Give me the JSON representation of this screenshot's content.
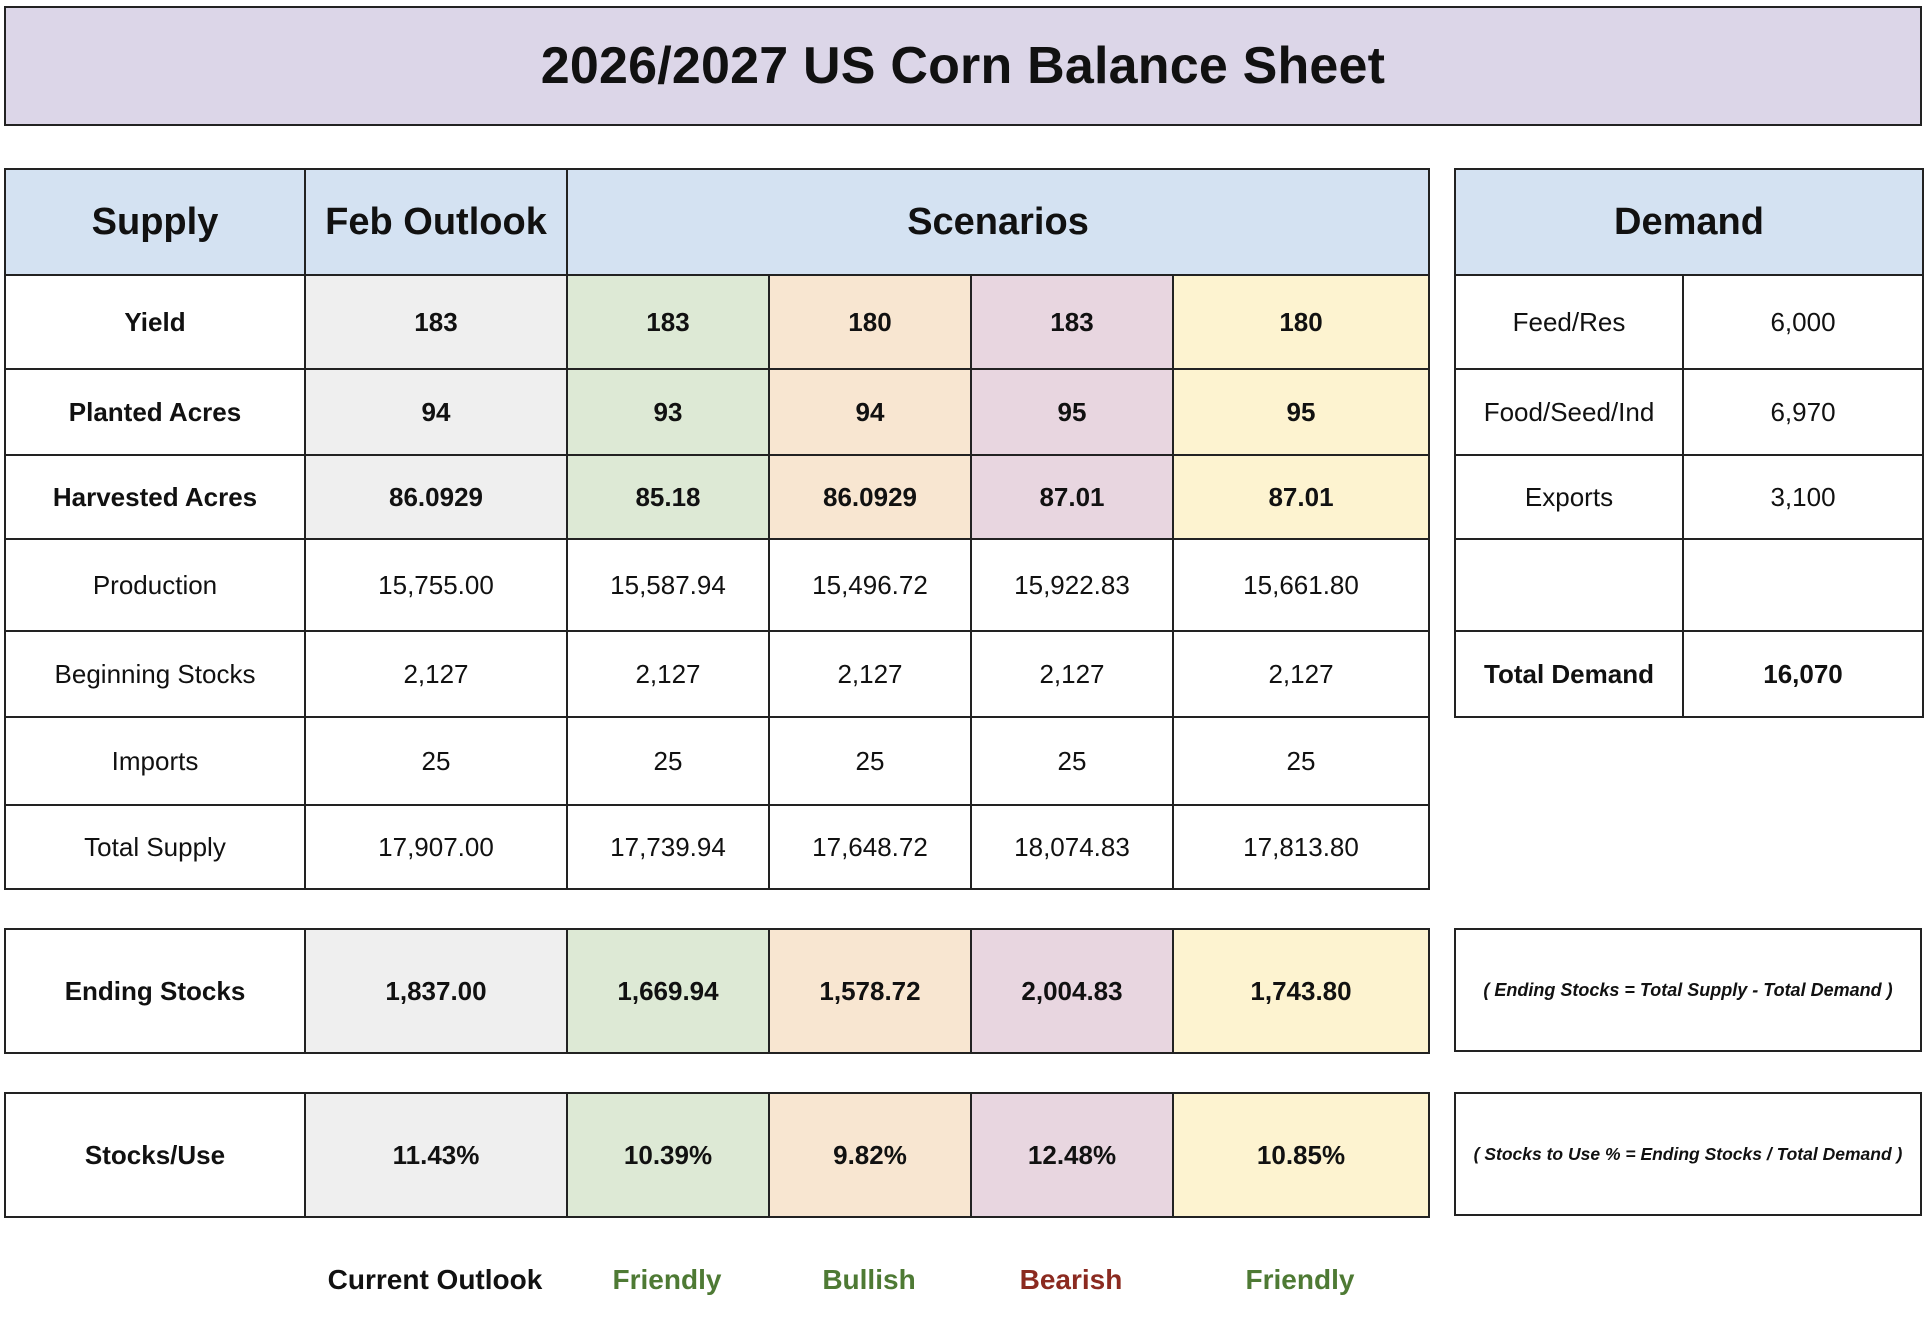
{
  "title": "2026/2027 US Corn Balance Sheet",
  "supply_table": {
    "headers": {
      "supply": "Supply",
      "feb_outlook": "Feb Outlook",
      "scenarios": "Scenarios"
    },
    "rows": [
      {
        "label": "Yield",
        "bold": true,
        "feb": "183",
        "s1": "183",
        "s2": "180",
        "s3": "183",
        "s4": "180"
      },
      {
        "label": "Planted Acres",
        "bold": true,
        "feb": "94",
        "s1": "93",
        "s2": "94",
        "s3": "95",
        "s4": "95"
      },
      {
        "label": "Harvested Acres",
        "bold": true,
        "feb": "86.0929",
        "s1": "85.18",
        "s2": "86.0929",
        "s3": "87.01",
        "s4": "87.01"
      },
      {
        "label": "Production",
        "bold": false,
        "feb": "15,755.00",
        "s1": "15,587.94",
        "s2": "15,496.72",
        "s3": "15,922.83",
        "s4": "15,661.80"
      },
      {
        "label": "Beginning Stocks",
        "bold": false,
        "feb": "2,127",
        "s1": "2,127",
        "s2": "2,127",
        "s3": "2,127",
        "s4": "2,127"
      },
      {
        "label": "Imports",
        "bold": false,
        "feb": "25",
        "s1": "25",
        "s2": "25",
        "s3": "25",
        "s4": "25"
      },
      {
        "label": "Total Supply",
        "bold": false,
        "feb": "17,907.00",
        "s1": "17,739.94",
        "s2": "17,648.72",
        "s3": "18,074.83",
        "s4": "17,813.80"
      }
    ]
  },
  "demand_table": {
    "header": "Demand",
    "rows": [
      {
        "label": "Feed/Res",
        "value": "6,000"
      },
      {
        "label": "Food/Seed/Ind",
        "value": "6,970"
      },
      {
        "label": "Exports",
        "value": "3,100"
      },
      {
        "label": "",
        "value": ""
      },
      {
        "label": "Total Demand",
        "value": "16,070"
      }
    ]
  },
  "ending_stocks": {
    "label": "Ending Stocks",
    "feb": "1,837.00",
    "s1": "1,669.94",
    "s2": "1,578.72",
    "s3": "2,004.83",
    "s4": "1,743.80",
    "formula": "( Ending Stocks = Total Supply - Total Demand )"
  },
  "stocks_use": {
    "label": "Stocks/Use",
    "feb": "11.43%",
    "s1": "10.39%",
    "s2": "9.82%",
    "s3": "12.48%",
    "s4": "10.85%",
    "formula": "( Stocks to Use % = Ending Stocks / Total Demand )"
  },
  "scenario_labels": {
    "current": "Current Outlook",
    "s1": "Friendly",
    "s2": "Bullish",
    "s3": "Bearish",
    "s4": "Friendly"
  },
  "colors": {
    "title_bg": "#dcd6e8",
    "header_bg": "#d4e2f2",
    "feb_bg": "#efefef",
    "scenario1_bg": "#dde9d5",
    "scenario2_bg": "#f8e6d1",
    "scenario3_bg": "#e8d6e0",
    "scenario4_bg": "#fdf3d0",
    "friendly_text": "#4e7a34",
    "bullish_text": "#4e7a34",
    "bearish_text": "#8b2a20"
  }
}
